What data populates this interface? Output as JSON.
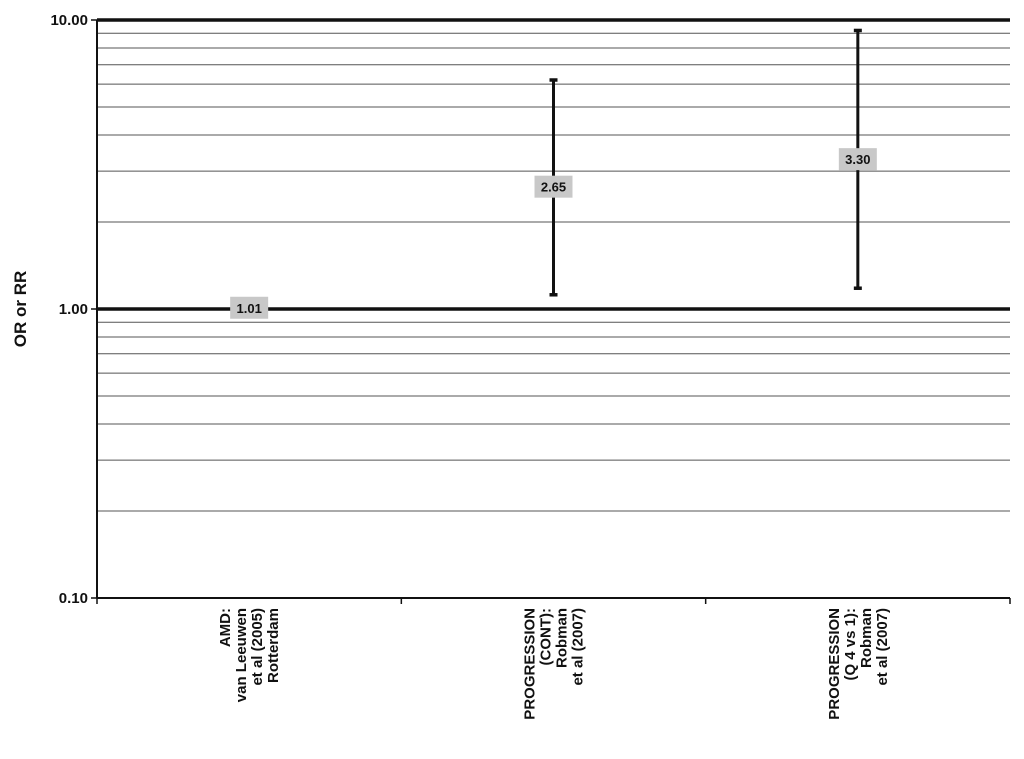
{
  "chart_data": {
    "type": "scatter",
    "ylabel": "OR or RR",
    "y_scale": "log",
    "ylim": [
      0.1,
      10
    ],
    "y_ticks": [
      "0.10",
      "1.00",
      "10.00"
    ],
    "grid": true,
    "reference_line": 1.0,
    "categories": [
      [
        "AMD:",
        "van Leeuwen",
        "et al (2005)",
        "Rotterdam"
      ],
      [
        "PROGRESSION",
        "(CONT):",
        "Robman",
        "et al (2007)"
      ],
      [
        "PROGRESSION",
        "(Q 4 vs 1):",
        "Robman",
        "et al (2007)"
      ]
    ],
    "values": [
      1.01,
      2.65,
      3.3
    ],
    "ci_lower": [
      null,
      1.12,
      1.18
    ],
    "ci_upper": [
      null,
      6.2,
      9.2
    ],
    "data_labels": [
      "1.01",
      "2.65",
      "3.30"
    ],
    "label_box_color": "#c8c8c8",
    "line_color": "#111111"
  }
}
